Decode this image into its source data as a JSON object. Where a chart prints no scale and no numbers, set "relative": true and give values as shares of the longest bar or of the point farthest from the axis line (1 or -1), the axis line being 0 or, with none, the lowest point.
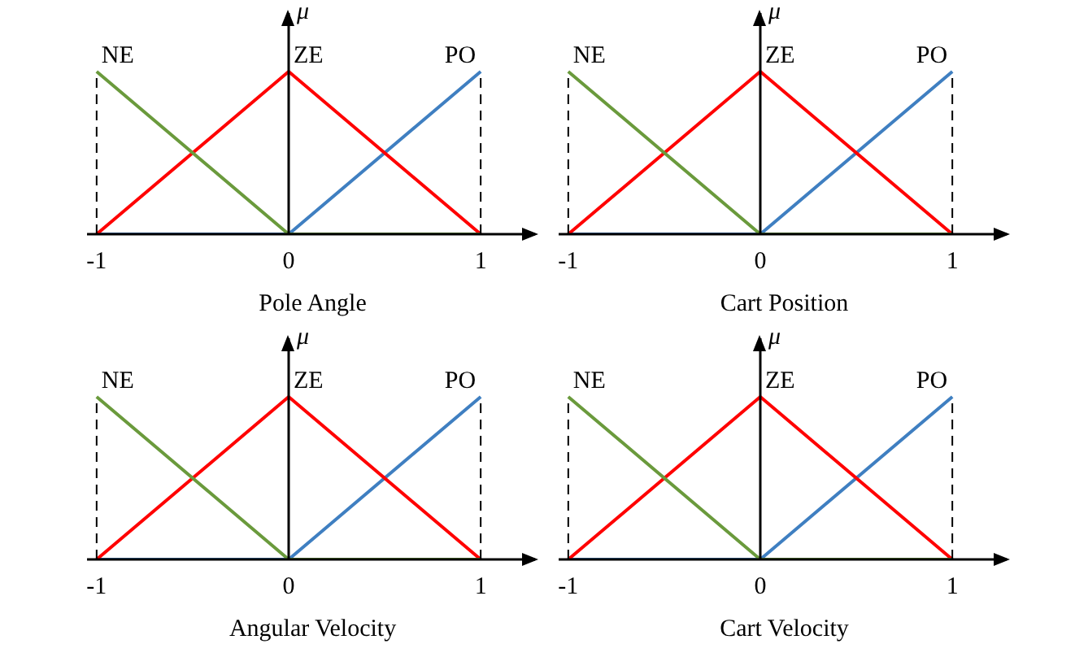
{
  "chart_data": [
    {
      "type": "line",
      "xlabel": "Pole Angle",
      "ylabel": "μ",
      "relative": true,
      "xlim": [
        -1.05,
        1.3
      ],
      "xticks": [
        -1,
        0,
        1
      ],
      "tick_labels": "x",
      "grid": false,
      "legend": false,
      "marker": "none",
      "line_style": "solid",
      "ref_lines": [
        {
          "axis": "x",
          "value": -1,
          "color": "#000000",
          "line_style": "dashed"
        },
        {
          "axis": "x",
          "value": 1,
          "color": "#000000",
          "line_style": "dashed"
        }
      ],
      "series": [
        {
          "name": "NE",
          "color": "#6a9a3c",
          "x": [
            -1,
            0,
            1
          ],
          "values": [
            1,
            0,
            0
          ]
        },
        {
          "name": "ZE",
          "color": "#ff0000",
          "x": [
            -1,
            0,
            1
          ],
          "values": [
            0,
            1,
            0
          ]
        },
        {
          "name": "PO",
          "color": "#3f7fc1",
          "x": [
            -1,
            0,
            1
          ],
          "values": [
            0,
            0,
            1
          ]
        }
      ]
    },
    {
      "type": "line",
      "xlabel": "Cart Position",
      "ylabel": "μ",
      "relative": true,
      "xlim": [
        -1.05,
        1.3
      ],
      "xticks": [
        -1,
        0,
        1
      ],
      "tick_labels": "x",
      "grid": false,
      "legend": false,
      "marker": "none",
      "line_style": "solid",
      "ref_lines": [
        {
          "axis": "x",
          "value": -1,
          "color": "#000000",
          "line_style": "dashed"
        },
        {
          "axis": "x",
          "value": 1,
          "color": "#000000",
          "line_style": "dashed"
        }
      ],
      "series": [
        {
          "name": "NE",
          "color": "#6a9a3c",
          "x": [
            -1,
            0,
            1
          ],
          "values": [
            1,
            0,
            0
          ]
        },
        {
          "name": "ZE",
          "color": "#ff0000",
          "x": [
            -1,
            0,
            1
          ],
          "values": [
            0,
            1,
            0
          ]
        },
        {
          "name": "PO",
          "color": "#3f7fc1",
          "x": [
            -1,
            0,
            1
          ],
          "values": [
            0,
            0,
            1
          ]
        }
      ]
    },
    {
      "type": "line",
      "xlabel": "Angular Velocity",
      "ylabel": "μ",
      "relative": true,
      "xlim": [
        -1.05,
        1.3
      ],
      "xticks": [
        -1,
        0,
        1
      ],
      "tick_labels": "x",
      "grid": false,
      "legend": false,
      "marker": "none",
      "line_style": "solid",
      "ref_lines": [
        {
          "axis": "x",
          "value": -1,
          "color": "#000000",
          "line_style": "dashed"
        },
        {
          "axis": "x",
          "value": 1,
          "color": "#000000",
          "line_style": "dashed"
        }
      ],
      "series": [
        {
          "name": "NE",
          "color": "#6a9a3c",
          "x": [
            -1,
            0,
            1
          ],
          "values": [
            1,
            0,
            0
          ]
        },
        {
          "name": "ZE",
          "color": "#ff0000",
          "x": [
            -1,
            0,
            1
          ],
          "values": [
            0,
            1,
            0
          ]
        },
        {
          "name": "PO",
          "color": "#3f7fc1",
          "x": [
            -1,
            0,
            1
          ],
          "values": [
            0,
            0,
            1
          ]
        }
      ]
    },
    {
      "type": "line",
      "xlabel": "Cart Velocity",
      "ylabel": "μ",
      "relative": true,
      "xlim": [
        -1.05,
        1.3
      ],
      "xticks": [
        -1,
        0,
        1
      ],
      "tick_labels": "x",
      "grid": false,
      "legend": false,
      "marker": "none",
      "line_style": "solid",
      "ref_lines": [
        {
          "axis": "x",
          "value": -1,
          "color": "#000000",
          "line_style": "dashed"
        },
        {
          "axis": "x",
          "value": 1,
          "color": "#000000",
          "line_style": "dashed"
        }
      ],
      "series": [
        {
          "name": "NE",
          "color": "#6a9a3c",
          "x": [
            -1,
            0,
            1
          ],
          "values": [
            1,
            0,
            0
          ]
        },
        {
          "name": "ZE",
          "color": "#ff0000",
          "x": [
            -1,
            0,
            1
          ],
          "values": [
            0,
            1,
            0
          ]
        },
        {
          "name": "PO",
          "color": "#3f7fc1",
          "x": [
            -1,
            0,
            1
          ],
          "values": [
            0,
            0,
            1
          ]
        }
      ]
    }
  ]
}
